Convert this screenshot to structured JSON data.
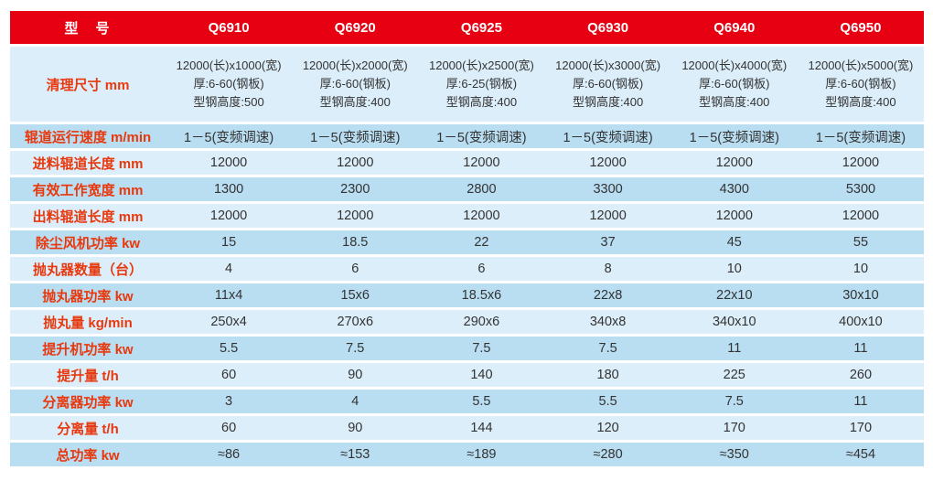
{
  "table": {
    "header": {
      "label": "型　号",
      "models": [
        "Q6910",
        "Q6920",
        "Q6925",
        "Q6930",
        "Q6940",
        "Q6950"
      ]
    },
    "rows": [
      {
        "label": "清理尺寸  mm",
        "values": [
          "12000(长)x1000(宽)\n厚:6-60(钢板)\n型钢高度:500",
          "12000(长)x2000(宽)\n厚:6-60(钢板)\n型钢高度:400",
          "12000(长)x2500(宽)\n厚:6-25(钢板)\n型钢高度:400",
          "12000(长)x3000(宽)\n厚:6-60(钢板)\n型钢高度:400",
          "12000(长)x4000(宽)\n厚:6-60(钢板)\n型钢高度:400",
          "12000(长)x5000(宽)\n厚:6-60(钢板)\n型钢高度:400"
        ]
      },
      {
        "label": "辊道运行速度  m/min",
        "values": [
          "1－5(变频调速)",
          "1－5(变频调速)",
          "1－5(变频调速)",
          "1－5(变频调速)",
          "1－5(变频调速)",
          "1－5(变频调速)"
        ]
      },
      {
        "label": "进料辊道长度  mm",
        "values": [
          "12000",
          "12000",
          "12000",
          "12000",
          "12000",
          "12000"
        ]
      },
      {
        "label": "有效工作宽度  mm",
        "values": [
          "1300",
          "2300",
          "2800",
          "3300",
          "4300",
          "5300"
        ]
      },
      {
        "label": "出料辊道长度  mm",
        "values": [
          "12000",
          "12000",
          "12000",
          "12000",
          "12000",
          "12000"
        ]
      },
      {
        "label": "除尘风机功率  kw",
        "values": [
          "15",
          "18.5",
          "22",
          "37",
          "45",
          "55"
        ]
      },
      {
        "label": "抛丸器数量（台）",
        "values": [
          "4",
          "6",
          "6",
          "8",
          "10",
          "10"
        ]
      },
      {
        "label": "抛丸器功率  kw",
        "values": [
          "11x4",
          "15x6",
          "18.5x6",
          "22x8",
          "22x10",
          "30x10"
        ]
      },
      {
        "label": "抛丸量  kg/min",
        "values": [
          "250x4",
          "270x6",
          "290x6",
          "340x8",
          "340x10",
          "400x10"
        ]
      },
      {
        "label": "提升机功率  kw",
        "values": [
          "5.5",
          "7.5",
          "7.5",
          "7.5",
          "11",
          "11"
        ]
      },
      {
        "label": "提升量  t/h",
        "values": [
          "60",
          "90",
          "140",
          "180",
          "225",
          "260"
        ]
      },
      {
        "label": "分离器功率  kw",
        "values": [
          "3",
          "4",
          "5.5",
          "5.5",
          "7.5",
          "11"
        ]
      },
      {
        "label": "分离量  t/h",
        "values": [
          "60",
          "90",
          "144",
          "120",
          "170",
          "170"
        ]
      },
      {
        "label": "总功率  kw",
        "values": [
          "≈86",
          "≈153",
          "≈189",
          "≈280",
          "≈350",
          "≈454"
        ]
      }
    ],
    "colors": {
      "header_bg": "#e60012",
      "header_text": "#ffffff",
      "label_text": "#e8380d",
      "row_light": "#dceefa",
      "row_dark": "#b9ddf1",
      "value_text": "#333333",
      "page_bg": "#ffffff"
    }
  }
}
